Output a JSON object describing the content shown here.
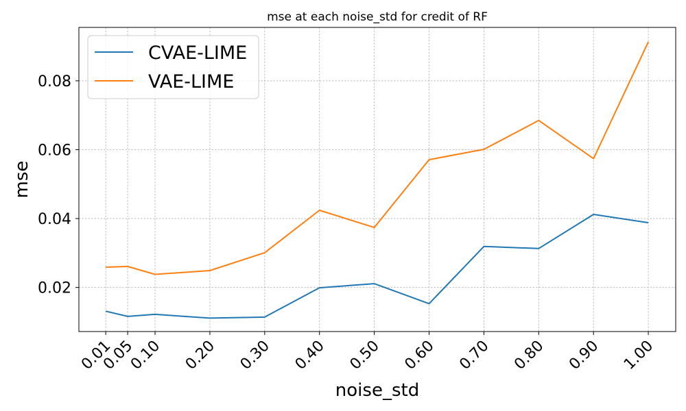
{
  "chart_data": {
    "type": "line",
    "title": "mse at each noise_std for credit of RF",
    "xlabel": "noise_std",
    "ylabel": "mse",
    "x": [
      0.01,
      0.05,
      0.1,
      0.2,
      0.3,
      0.4,
      0.5,
      0.6,
      0.7,
      0.8,
      0.9,
      1.0
    ],
    "x_tick_labels": [
      "0.01",
      "0.05",
      "0.10",
      "0.20",
      "0.30",
      "0.40",
      "0.50",
      "0.60",
      "0.70",
      "0.80",
      "0.90",
      "1.00"
    ],
    "y_ticks": [
      0.02,
      0.04,
      0.06,
      0.08
    ],
    "y_tick_labels": [
      "0.02",
      "0.04",
      "0.06",
      "0.08"
    ],
    "xlim": [
      -0.039,
      1.05
    ],
    "ylim": [
      0.0072,
      0.0955
    ],
    "grid": true,
    "legend_position": "upper-left",
    "series": [
      {
        "name": "CVAE-LIME",
        "color": "#1f77b4",
        "values": [
          0.0131,
          0.0116,
          0.0122,
          0.0111,
          0.0114,
          0.0199,
          0.0211,
          0.0153,
          0.0319,
          0.0313,
          0.0412,
          0.0388
        ]
      },
      {
        "name": "VAE-LIME",
        "color": "#ff7f0e",
        "values": [
          0.0259,
          0.0261,
          0.0238,
          0.0249,
          0.0301,
          0.0424,
          0.0374,
          0.0571,
          0.0601,
          0.0685,
          0.0574,
          0.0913
        ]
      }
    ]
  }
}
